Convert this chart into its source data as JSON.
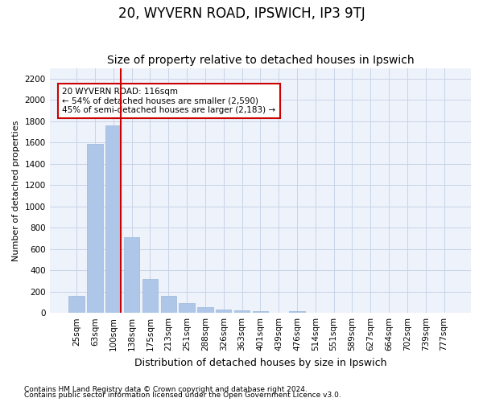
{
  "title": "20, WYVERN ROAD, IPSWICH, IP3 9TJ",
  "subtitle": "Size of property relative to detached houses in Ipswich",
  "xlabel": "Distribution of detached houses by size in Ipswich",
  "ylabel": "Number of detached properties",
  "footnote1": "Contains HM Land Registry data © Crown copyright and database right 2024.",
  "footnote2": "Contains public sector information licensed under the Open Government Licence v3.0.",
  "categories": [
    "25sqm",
    "63sqm",
    "100sqm",
    "138sqm",
    "175sqm",
    "213sqm",
    "251sqm",
    "288sqm",
    "326sqm",
    "363sqm",
    "401sqm",
    "439sqm",
    "476sqm",
    "514sqm",
    "551sqm",
    "589sqm",
    "627sqm",
    "664sqm",
    "702sqm",
    "739sqm",
    "777sqm"
  ],
  "values": [
    160,
    1590,
    1760,
    710,
    315,
    160,
    90,
    55,
    35,
    25,
    20,
    0,
    20,
    0,
    0,
    0,
    0,
    0,
    0,
    0,
    0
  ],
  "bar_color": "#aec6e8",
  "bar_edge_color": "#9bb8d8",
  "annotation_text": "20 WYVERN ROAD: 116sqm\n← 54% of detached houses are smaller (2,590)\n45% of semi-detached houses are larger (2,183) →",
  "annotation_box_color": "#ffffff",
  "annotation_box_edge": "#cc0000",
  "vline_color": "#cc0000",
  "vline_x": 2.42,
  "ylim": [
    0,
    2300
  ],
  "yticks": [
    0,
    200,
    400,
    600,
    800,
    1000,
    1200,
    1400,
    1600,
    1800,
    2000,
    2200
  ],
  "grid_color": "#c8d4e8",
  "bg_color": "#eef2fa",
  "title_fontsize": 12,
  "subtitle_fontsize": 10,
  "axis_label_fontsize": 9,
  "tick_fontsize": 7.5,
  "annotation_fontsize": 7.5,
  "ylabel_fontsize": 8
}
